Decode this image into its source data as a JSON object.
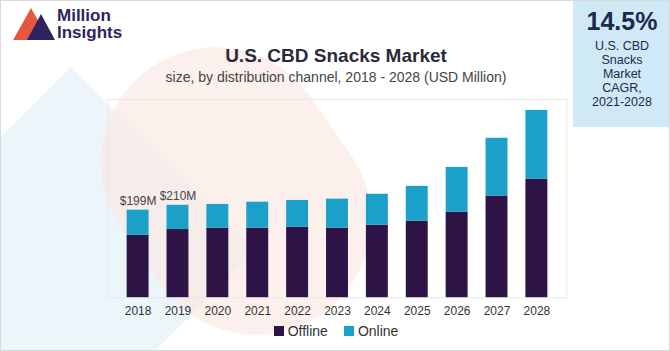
{
  "chart_data": {
    "type": "bar",
    "title": "U.S. CBD Snacks Market",
    "subtitle": "size, by distribution channel, 2018 - 2028 (USD Million)",
    "categories": [
      "2018",
      "2019",
      "2020",
      "2021",
      "2022",
      "2023",
      "2024",
      "2025",
      "2026",
      "2027",
      "2028"
    ],
    "series": [
      {
        "name": "Offline",
        "color": "#2e1346",
        "values": [
          142,
          155,
          158,
          158,
          160,
          158,
          165,
          174,
          194,
          231,
          269
        ]
      },
      {
        "name": "Online",
        "color": "#1ba1c9",
        "values": [
          57,
          55,
          54,
          59,
          61,
          66,
          70,
          79,
          102,
          131,
          156
        ]
      }
    ],
    "stacked": true,
    "ylim": [
      0,
      450
    ],
    "yticks": [],
    "tick_labels": "x",
    "legend": "bottom",
    "annotations": [
      {
        "x": "2018",
        "y": 199,
        "text": "$199M"
      },
      {
        "x": "2019",
        "y": 210,
        "text": "$210M"
      }
    ],
    "callout": {
      "value": 14.5,
      "value_label": "14.5%",
      "text": "U.S. CBD Snacks Market CAGR, 2021-2028"
    },
    "logo": [
      "Million",
      "Insights"
    ]
  }
}
